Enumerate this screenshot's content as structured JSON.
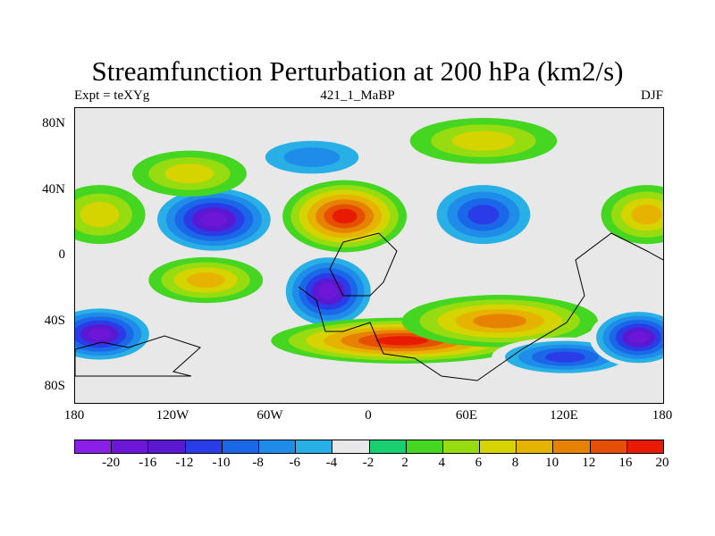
{
  "title": "Streamfunction Perturbation at 200 hPa (km2/s)",
  "subtitle_left": "Expt = teXYg",
  "subtitle_center": "421_1_MaBP",
  "subtitle_right": "DJF",
  "lat_ticks": [
    "80N",
    "40N",
    "0",
    "40S",
    "80S"
  ],
  "lon_ticks": [
    "180",
    "120W",
    "60W",
    "0",
    "60E",
    "120E",
    "180"
  ],
  "colorbar": {
    "labels": [
      "-20",
      "-16",
      "-12",
      "-10",
      "-8",
      "-6",
      "-4",
      "-2",
      "2",
      "4",
      "6",
      "8",
      "10",
      "12",
      "16",
      "20"
    ],
    "colors": [
      "#8a20e8",
      "#6e16d8",
      "#5a18d0",
      "#2a3be8",
      "#1a68e8",
      "#1e8ce8",
      "#28b0e6",
      "#e8e8e8",
      "#18d070",
      "#44d620",
      "#96dc10",
      "#d6d400",
      "#e6b400",
      "#e68200",
      "#e64e00",
      "#e81a00"
    ]
  },
  "map_regions": [
    {
      "lon": -165,
      "lat": 25,
      "rx": 28,
      "ry": 18,
      "value": 6
    },
    {
      "lon": -165,
      "lat": -48,
      "rx": 35,
      "ry": 18,
      "value": -16
    },
    {
      "lon": -95,
      "lat": 22,
      "rx": 40,
      "ry": 22,
      "value": -16
    },
    {
      "lon": -110,
      "lat": 50,
      "rx": 35,
      "ry": 14,
      "value": 6
    },
    {
      "lon": -100,
      "lat": -15,
      "rx": 35,
      "ry": 14,
      "value": 8
    },
    {
      "lon": -15,
      "lat": 24,
      "rx": 38,
      "ry": 22,
      "value": 16
    },
    {
      "lon": -35,
      "lat": 60,
      "rx": 40,
      "ry": 14,
      "value": -6
    },
    {
      "lon": -25,
      "lat": -22,
      "rx": 30,
      "ry": 24,
      "value": -16
    },
    {
      "lon": 70,
      "lat": 25,
      "rx": 35,
      "ry": 22,
      "value": -10
    },
    {
      "lon": 70,
      "lat": 70,
      "rx": 45,
      "ry": 14,
      "value": 6
    },
    {
      "lon": 20,
      "lat": -52,
      "rx": 80,
      "ry": 14,
      "value": 16
    },
    {
      "lon": 80,
      "lat": -40,
      "rx": 60,
      "ry": 16,
      "value": 10
    },
    {
      "lon": 120,
      "lat": -62,
      "rx": 45,
      "ry": 12,
      "value": -10
    },
    {
      "lon": 165,
      "lat": -50,
      "rx": 30,
      "ry": 18,
      "value": -16
    },
    {
      "lon": 170,
      "lat": 25,
      "rx": 28,
      "ry": 18,
      "value": 8
    }
  ]
}
